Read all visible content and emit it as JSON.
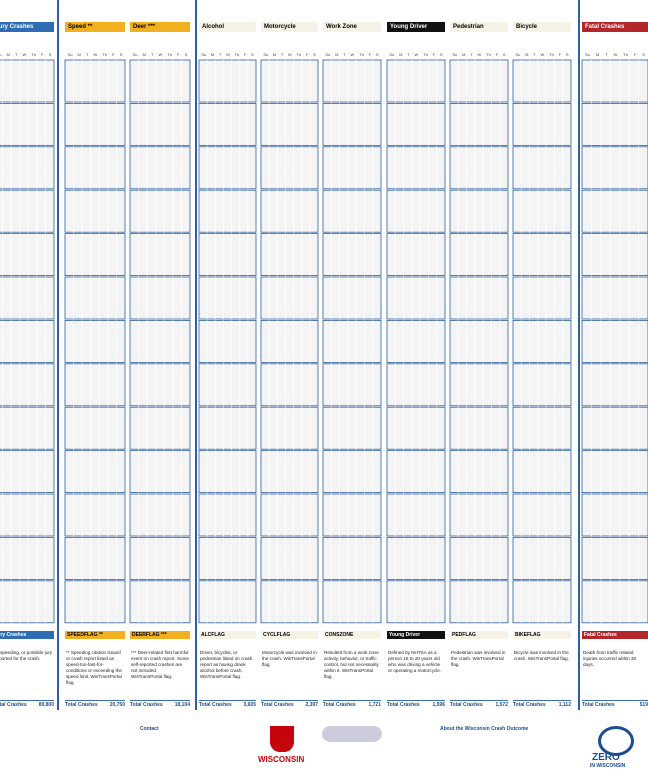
{
  "columns": [
    {
      "title": "jury Crashes",
      "footer_label": "jury Crashes",
      "description": "unspeeding, or possible jury reported for the crash.",
      "total": "89,800"
    },
    {
      "title": "Speed **",
      "footer_label": "SPEEDFLAG **",
      "description": "** Speeding citation issued or crash report listed as speed-too-fast-for-conditions or exceeding the speed limit. WisTransPortal flag.",
      "total": "20,750"
    },
    {
      "title": "Deer ***",
      "footer_label": "DEERFLAG ***",
      "description": "*** Deer-related first harmful event on crash report. Some self-reported crashes are not included. WisTransPortal flag.",
      "total": "18,104"
    },
    {
      "title": "Alcohol",
      "footer_label": "ALCFLAG",
      "description": "Driver, bicyclist, or pedestrian listed on crash report as having drank alcohol before crash. WisTransPortal flag.",
      "total": "3,605"
    },
    {
      "title": "Motorcycle",
      "footer_label": "CYCLFLAG",
      "description": "Motorcycle was involved in the crash. WisTransPortal flag.",
      "total": "2,397"
    },
    {
      "title": "Work Zone",
      "footer_label": "CONSZONE",
      "description": "Resulted from a work zone activity, behavior, or traffic control, but not necessarily within it. WisTransPortal flag.",
      "total": "1,721"
    },
    {
      "title": "Young Driver",
      "footer_label": "Young Driver",
      "description": "Defined by NHTSA as a person 15 to 20 years old who was driving a vehicle or operating a motorcycle.",
      "total": "1,596"
    },
    {
      "title": "Pedestrian",
      "footer_label": "PEDFLAG",
      "description": "Pedestrian was involved in the crash. WisTransPortal flag.",
      "total": "1,572"
    },
    {
      "title": "Bicycle",
      "footer_label": "BIKEFLAG",
      "description": "Bicycle was involved in the crash. WisTransPortal flag.",
      "total": "1,112"
    },
    {
      "title": "Fatal Crashes",
      "footer_label": "Fatal Crashes",
      "description": "Death from traffic related injuries occurred within 30 days.",
      "total": "519"
    }
  ],
  "days": [
    "Su",
    "M",
    "T",
    "W",
    "Th",
    "F",
    "S"
  ],
  "total_label": "Total Crashes",
  "credits": {
    "contact": "Contact",
    "university": "WISCONSIN",
    "about": "About the Wisconsin Crash Outcome",
    "logo_top": "ZERO",
    "logo_bottom": "IN WISCONSIN"
  }
}
